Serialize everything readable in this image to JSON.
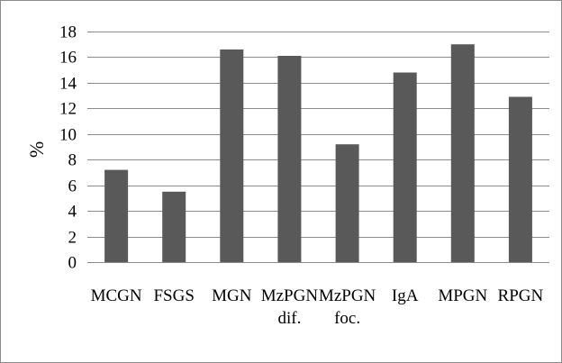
{
  "chart_data": {
    "type": "bar",
    "categories": [
      [
        "MCGN"
      ],
      [
        "FSGS"
      ],
      [
        "MGN"
      ],
      [
        "MzPGN",
        "dif."
      ],
      [
        "MzPGN",
        "foc."
      ],
      [
        "IgA"
      ],
      [
        "MPGN"
      ],
      [
        "RPGN"
      ]
    ],
    "values": [
      7.2,
      5.5,
      16.6,
      16.1,
      9.2,
      14.8,
      17.0,
      12.9
    ],
    "title": "",
    "xlabel": "",
    "ylabel": "%",
    "ylim": [
      0,
      18
    ],
    "yticks": [
      0,
      2,
      4,
      6,
      8,
      10,
      12,
      14,
      16,
      18
    ],
    "grid": true,
    "bar_color": "#595959",
    "grid_color": "#8c8c8c"
  }
}
